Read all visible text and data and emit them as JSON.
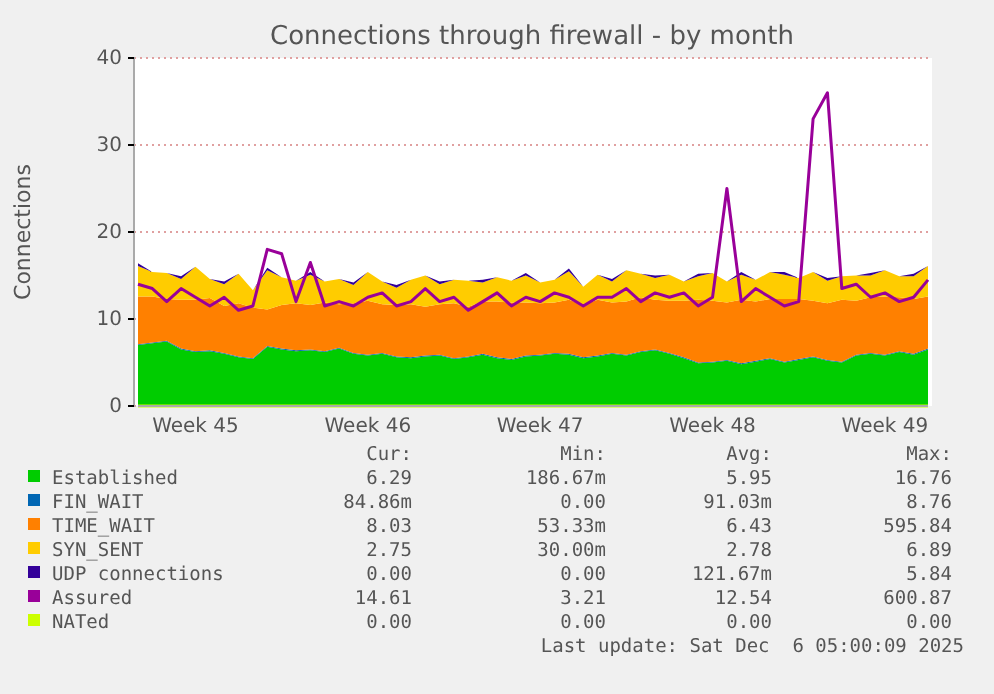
{
  "chart_data": {
    "type": "area",
    "title": "Connections through firewall - by month",
    "ylabel": "Connections",
    "stacked": true,
    "legend": "bottom",
    "grid": true,
    "categories": [
      null,
      null,
      null,
      null,
      "Week 45",
      null,
      null,
      null,
      null,
      null,
      null,
      null,
      null,
      null,
      null,
      null,
      "Week 46",
      null,
      null,
      null,
      null,
      null,
      null,
      null,
      null,
      null,
      null,
      null,
      "Week 47",
      null,
      null,
      null,
      null,
      null,
      null,
      null,
      null,
      null,
      null,
      null,
      "Week 48",
      null,
      null,
      null,
      null,
      null,
      null,
      null,
      null,
      null,
      null,
      null,
      "Week 49",
      null,
      null,
      null
    ],
    "ylim": [
      0,
      40
    ],
    "yticks": [
      0,
      10,
      20,
      30,
      40
    ],
    "series": [
      {
        "name": "Established",
        "color": "#00cc00",
        "values": [
          7.0,
          7.2,
          7.4,
          6.5,
          6.2,
          6.3,
          6.0,
          5.6,
          5.4,
          6.8,
          6.5,
          6.3,
          6.4,
          6.2,
          6.6,
          6.0,
          5.8,
          6.0,
          5.6,
          5.5,
          5.7,
          5.8,
          5.4,
          5.6,
          5.9,
          5.5,
          5.3,
          5.7,
          5.8,
          6.0,
          5.9,
          5.5,
          5.7,
          6.0,
          5.8,
          6.2,
          6.4,
          6.0,
          5.5,
          4.9,
          5.0,
          5.2,
          4.8,
          5.1,
          5.4,
          5.0,
          5.3,
          5.6,
          5.2,
          5.0,
          5.8,
          6.0,
          5.8,
          6.2,
          5.9,
          6.5
        ]
      },
      {
        "name": "FIN_WAIT",
        "color": "#0066b3",
        "type": "area",
        "values": [
          0.1,
          0.1,
          0.1,
          0.1,
          0.1,
          0.1,
          0.1,
          0.1,
          0.1,
          0.1,
          0.1,
          0.1,
          0.1,
          0.1,
          0.1,
          0.1,
          0.1,
          0.1,
          0.1,
          0.1,
          0.1,
          0.1,
          0.1,
          0.1,
          0.1,
          0.1,
          0.1,
          0.1,
          0.1,
          0.1,
          0.1,
          0.1,
          0.1,
          0.1,
          0.1,
          0.1,
          0.1,
          0.1,
          0.1,
          0.1,
          0.1,
          0.1,
          0.1,
          0.1,
          0.1,
          0.1,
          0.1,
          0.1,
          0.1,
          0.1,
          0.1,
          0.1,
          0.1,
          0.1,
          0.1,
          0.1
        ]
      },
      {
        "name": "TIME_WAIT",
        "color": "#ff8000",
        "type": "area",
        "values": [
          5.5,
          5.3,
          4.8,
          5.6,
          5.9,
          6.0,
          5.4,
          6.1,
          5.8,
          4.2,
          5.0,
          5.4,
          5.1,
          5.6,
          5.0,
          5.7,
          6.2,
          5.6,
          5.9,
          6.1,
          5.6,
          5.8,
          6.3,
          5.7,
          6.0,
          6.4,
          6.5,
          6.1,
          5.9,
          5.8,
          6.2,
          6.0,
          6.4,
          5.8,
          6.1,
          6.2,
          5.7,
          6.0,
          6.5,
          7.2,
          7.0,
          6.6,
          7.3,
          6.8,
          6.8,
          7.2,
          6.9,
          6.4,
          6.5,
          7.1,
          6.2,
          6.4,
          6.7,
          6.2,
          6.3,
          6.0
        ]
      },
      {
        "name": "SYN_SENT",
        "color": "#ffcc00",
        "type": "area",
        "values": [
          3.5,
          2.8,
          3.0,
          2.4,
          3.8,
          2.2,
          2.5,
          3.4,
          2.0,
          4.5,
          3.2,
          2.6,
          3.5,
          2.4,
          2.9,
          2.1,
          3.3,
          2.6,
          2.0,
          2.8,
          3.6,
          2.3,
          2.7,
          3.0,
          2.2,
          2.8,
          2.5,
          3.1,
          2.4,
          2.6,
          3.3,
          2.1,
          2.9,
          2.4,
          3.6,
          2.7,
          2.5,
          3.0,
          2.2,
          2.7,
          3.2,
          2.4,
          2.9,
          2.5,
          3.1,
          2.8,
          2.4,
          3.3,
          2.6,
          2.7,
          2.9,
          2.5,
          3.0,
          2.4,
          2.6,
          3.5
        ]
      },
      {
        "name": "UDP connections",
        "color": "#330099",
        "type": "area",
        "values": [
          0.3,
          0,
          0,
          0.3,
          0,
          0,
          0.3,
          0,
          0,
          0.3,
          0,
          0,
          0.3,
          0,
          0,
          0.3,
          0,
          0,
          0.3,
          0,
          0,
          0.3,
          0,
          0,
          0.3,
          0,
          0,
          0.3,
          0,
          0,
          0.3,
          0,
          0,
          0.3,
          0,
          0,
          0.3,
          0,
          0,
          0.3,
          0,
          0,
          0.3,
          0,
          0,
          0.3,
          0,
          0,
          0.3,
          0,
          0,
          0.3,
          0,
          0,
          0.3,
          0
        ]
      },
      {
        "name": "Assured",
        "color": "#990099",
        "type": "line",
        "values": [
          14.0,
          13.5,
          12.0,
          13.5,
          12.5,
          11.5,
          12.5,
          11.0,
          11.5,
          18.0,
          17.5,
          12.0,
          16.5,
          11.5,
          12.0,
          11.5,
          12.5,
          13.0,
          11.5,
          12.0,
          13.5,
          12.0,
          12.5,
          11.0,
          12.0,
          13.0,
          11.5,
          12.5,
          12.0,
          13.0,
          12.5,
          11.5,
          12.5,
          12.5,
          13.5,
          12.0,
          13.0,
          12.5,
          13.0,
          11.5,
          12.5,
          25.0,
          12.0,
          13.5,
          12.5,
          11.5,
          12.0,
          33.0,
          36.0,
          13.5,
          14.0,
          12.5,
          13.0,
          12.0,
          12.5,
          14.5
        ]
      },
      {
        "name": "NATed",
        "color": "#ccff00",
        "type": "line",
        "values": [
          0,
          0,
          0,
          0,
          0,
          0,
          0,
          0,
          0,
          0,
          0,
          0,
          0,
          0,
          0,
          0,
          0,
          0,
          0,
          0,
          0,
          0,
          0,
          0,
          0,
          0,
          0,
          0,
          0,
          0,
          0,
          0,
          0,
          0,
          0,
          0,
          0,
          0,
          0,
          0,
          0,
          0,
          0,
          0,
          0,
          0,
          0,
          0,
          0,
          0,
          0,
          0,
          0,
          0,
          0,
          0
        ]
      }
    ],
    "annotations": [
      "Cur:",
      "Min:",
      "Avg:",
      "Max:",
      "6.29",
      "186.67m",
      "5.95",
      "16.76",
      "84.86m",
      "0.00",
      "91.03m",
      "8.76",
      "8.03",
      "53.33m",
      "6.43",
      "595.84",
      "2.75",
      "30.00m",
      "2.78",
      "6.89",
      "0.00",
      "0.00",
      "121.67m",
      "5.84",
      "14.61",
      "3.21",
      "12.54",
      "600.87",
      "0.00",
      "0.00",
      "0.00",
      "0.00",
      "Last update: Sat Dec  6 05:00:09 2025"
    ]
  }
}
